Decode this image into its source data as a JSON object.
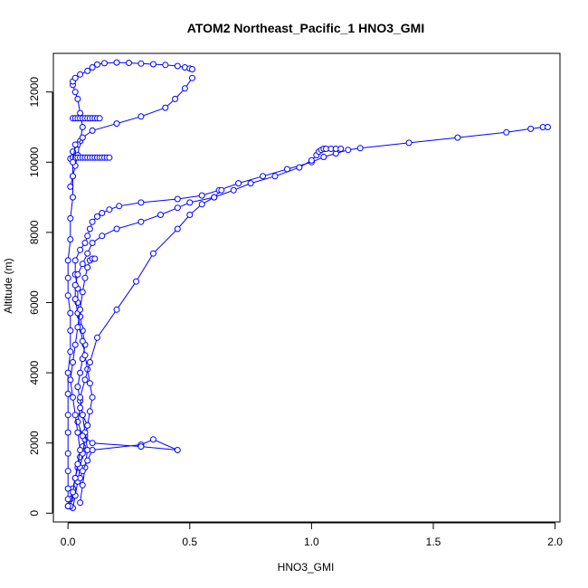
{
  "chart_data": {
    "type": "line",
    "title": "ATOM2 Northeast_Pacific_1 HNO3_GMI",
    "xlabel": "HNO3_GMI",
    "ylabel": "Altitude (m)",
    "xlim": [
      -0.06,
      2.02
    ],
    "ylim": [
      -250,
      13100
    ],
    "xticks": [
      0.0,
      0.5,
      1.0,
      1.5,
      2.0
    ],
    "xtick_labels": [
      "0.0",
      "0.5",
      "1.0",
      "1.5",
      "2.0"
    ],
    "yticks": [
      0,
      2000,
      4000,
      6000,
      8000,
      10000,
      12000
    ],
    "ytick_labels": [
      "0",
      "2000",
      "4000",
      "6000",
      "8000",
      "10000",
      "12000"
    ],
    "grid": false,
    "legend": "none",
    "marker": "open-circle",
    "color": "#0000ff",
    "series": [
      {
        "x": [
          0.0,
          0.01,
          0.02,
          0.03,
          0.04,
          0.05,
          0.06,
          0.07,
          0.08,
          0.06,
          0.05,
          0.04,
          0.05,
          0.06,
          0.07,
          0.06,
          0.05,
          0.04,
          0.04,
          0.03,
          0.03,
          0.05,
          0.07,
          0.08,
          0.09,
          0.1,
          0.12,
          0.14,
          0.17,
          0.21,
          0.3,
          0.45,
          0.55,
          0.62,
          0.7,
          0.8,
          0.9,
          1.0,
          1.05,
          1.1,
          1.15,
          1.2,
          1.4,
          1.6,
          1.8,
          1.9,
          1.95,
          1.97
        ],
        "y": [
          200,
          400,
          700,
          1000,
          1300,
          1600,
          1900,
          2200,
          2500,
          2800,
          3200,
          3600,
          4000,
          4400,
          4800,
          5200,
          5600,
          6000,
          6400,
          6800,
          7200,
          7500,
          7700,
          7900,
          8100,
          8300,
          8450,
          8550,
          8650,
          8750,
          8850,
          8950,
          9050,
          9200,
          9400,
          9600,
          9800,
          10000,
          10150,
          10250,
          10350,
          10400,
          10550,
          10700,
          10850,
          10950,
          11000,
          11000
        ]
      },
      {
        "x": [
          0.02,
          0.03,
          0.04,
          0.05,
          0.06,
          0.07,
          0.08,
          0.09,
          0.1,
          0.09,
          0.08,
          0.07,
          0.06,
          0.05,
          0.04,
          0.03,
          0.03,
          0.04,
          0.06,
          0.08,
          0.1,
          0.14,
          0.2,
          0.3,
          0.38,
          0.45,
          0.5,
          0.6,
          0.68,
          0.75,
          0.85,
          0.95,
          1.0,
          1.02,
          1.03,
          1.04,
          1.05,
          1.06,
          1.08,
          1.1,
          1.12
        ],
        "y": [
          150,
          500,
          900,
          1300,
          1700,
          2100,
          2500,
          2900,
          3300,
          3700,
          4100,
          4500,
          4900,
          5300,
          5700,
          6100,
          6500,
          6800,
          7100,
          7400,
          7700,
          7900,
          8100,
          8300,
          8500,
          8700,
          8850,
          9000,
          9200,
          9400,
          9600,
          9850,
          10050,
          10200,
          10300,
          10350,
          10380,
          10380,
          10380,
          10380,
          10380
        ]
      },
      {
        "x": [
          0.05,
          0.06,
          0.07,
          0.08,
          0.07,
          0.06,
          0.05,
          0.07,
          0.09,
          0.12,
          0.2,
          0.28,
          0.35,
          0.45,
          0.5,
          0.55,
          0.6,
          0.63
        ],
        "y": [
          300,
          800,
          1300,
          1800,
          2300,
          2800,
          3300,
          3800,
          4300,
          5000,
          5800,
          6600,
          7400,
          8100,
          8500,
          8800,
          9000,
          9200
        ]
      },
      {
        "x": [
          0.05,
          0.06,
          0.08,
          0.1,
          0.3,
          0.35,
          0.45,
          0.3,
          0.1,
          0.06,
          0.04,
          0.05
        ],
        "y": [
          1000,
          1200,
          1500,
          1800,
          1950,
          2100,
          1800,
          1900,
          2000,
          2200,
          2600,
          3000
        ]
      },
      {
        "x": [
          0.01,
          0.02,
          0.03,
          0.04,
          0.05,
          0.06,
          0.05,
          0.04,
          0.03,
          0.02,
          0.02,
          0.03,
          0.05,
          0.08,
          0.1,
          0.12,
          0.15,
          0.2,
          0.25,
          0.3,
          0.35,
          0.4,
          0.45,
          0.48,
          0.5,
          0.51
        ],
        "y": [
          9300,
          9600,
          9900,
          10200,
          10600,
          11000,
          11400,
          11800,
          12000,
          12200,
          12300,
          12400,
          12500,
          12600,
          12700,
          12780,
          12820,
          12840,
          12830,
          12810,
          12790,
          12770,
          12740,
          12700,
          12670,
          12650
        ]
      },
      {
        "x": [
          0.51,
          0.48,
          0.44,
          0.4,
          0.3,
          0.2,
          0.1,
          0.06,
          0.04,
          0.02,
          0.01
        ],
        "y": [
          12400,
          12100,
          11800,
          11550,
          11300,
          11100,
          10900,
          10700,
          10500,
          10300,
          10100
        ]
      },
      {
        "x": [
          0.02,
          0.03,
          0.04,
          0.05,
          0.06,
          0.07,
          0.08,
          0.09,
          0.1,
          0.11,
          0.12,
          0.13,
          0.14,
          0.15,
          0.16,
          0.17
        ],
        "y": [
          10130,
          10130,
          10130,
          10130,
          10130,
          10130,
          10130,
          10130,
          10130,
          10130,
          10130,
          10130,
          10130,
          10130,
          10130,
          10130
        ]
      },
      {
        "x": [
          0.02,
          0.03,
          0.04,
          0.05,
          0.06,
          0.07,
          0.08,
          0.09,
          0.1,
          0.11,
          0.12,
          0.13
        ],
        "y": [
          11250,
          11250,
          11250,
          11250,
          11250,
          11250,
          11250,
          11250,
          11250,
          11250,
          11250,
          11250
        ]
      },
      {
        "x": [
          0.01,
          0.02,
          0.03,
          0.04,
          0.05,
          0.04,
          0.03,
          0.02,
          0.01,
          0.02,
          0.03,
          0.04,
          0.05,
          0.06,
          0.07,
          0.08,
          0.09,
          0.1,
          0.11
        ],
        "y": [
          200,
          600,
          1000,
          1400,
          1800,
          2300,
          2800,
          3300,
          3800,
          4300,
          4800,
          5300,
          5800,
          6300,
          6700,
          7000,
          7200,
          7250,
          7250
        ]
      },
      {
        "x": [
          0.0,
          0.0,
          0.0,
          0.0,
          0.0,
          0.0,
          0.0,
          0.0,
          0.0,
          0.01,
          0.01,
          0.01,
          0.0,
          0.0,
          0.0,
          0.01,
          0.01,
          0.02,
          0.02,
          0.02,
          0.03
        ],
        "y": [
          200,
          400,
          700,
          1200,
          1700,
          2300,
          2800,
          3400,
          4000,
          4600,
          5200,
          5700,
          6200,
          6700,
          7200,
          7800,
          8400,
          9000,
          9600,
          10000,
          10500
        ]
      }
    ]
  }
}
